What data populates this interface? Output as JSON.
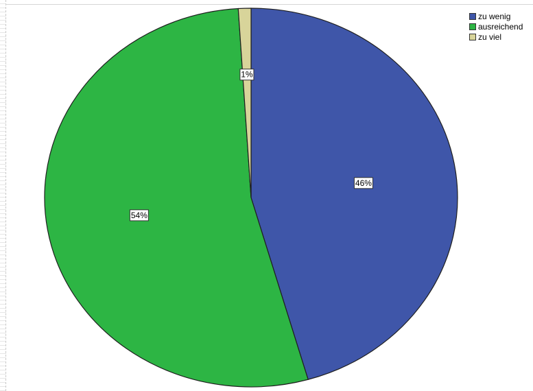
{
  "chart_data": {
    "type": "pie",
    "slices": [
      {
        "label": "zu wenig",
        "value": 46,
        "display": "46%",
        "color": "#3f56a9"
      },
      {
        "label": "ausreichend",
        "value": 54,
        "display": "54%",
        "color": "#2db544"
      },
      {
        "label": "zu viel",
        "value": 1,
        "display": "1%",
        "color": "#d8d49a"
      }
    ],
    "start_angle_deg": 0,
    "direction": "clockwise",
    "legend_position": "top-right",
    "edge_color": "#1f1f1f"
  }
}
